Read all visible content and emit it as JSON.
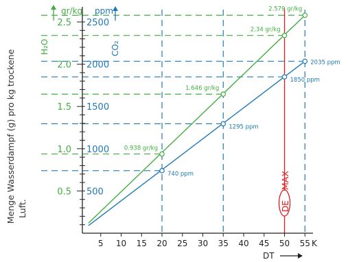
{
  "chart_data": {
    "type": "line",
    "ylabel_rotated": "Menge Wasserdampf (g) pro kg trockene Luft.",
    "ylabel_line1": "Menge Wasserdampf (g) pro kg trockene",
    "ylabel_line2": "Luft.",
    "h2o_axis": {
      "unit": "gr/kg",
      "label": "H₂O",
      "ticks": [
        "0.5",
        "1.0",
        "1.5",
        "2.0",
        "2.5"
      ],
      "tick_values": [
        0.5,
        1.0,
        1.5,
        2.0,
        2.5
      ],
      "ylim": [
        0.0,
        2.6
      ]
    },
    "co2_axis": {
      "unit": "ppm",
      "label": "CO₂",
      "ticks": [
        "500",
        "1000",
        "1500",
        "2000",
        "2500"
      ],
      "tick_values": [
        500,
        1000,
        1500,
        2000,
        2500
      ],
      "ylim": [
        0,
        2600
      ]
    },
    "x_axis": {
      "ticks": [
        "5",
        "10",
        "15",
        "20",
        "25",
        "30",
        "35",
        "40",
        "45",
        "50",
        "55"
      ],
      "tick_values": [
        5,
        10,
        15,
        20,
        25,
        30,
        35,
        40,
        45,
        50,
        55
      ],
      "unit": "K",
      "label": "DT",
      "xlim": [
        0,
        57
      ]
    },
    "series": [
      {
        "color": "#3fae3f",
        "axis": "h2o",
        "line": [
          [
            2,
            0.12
          ],
          [
            55,
            2.579
          ]
        ],
        "points": [
          {
            "x": 20,
            "y": 0.938,
            "label": "0.938 gr/kg"
          },
          {
            "x": 35,
            "y": 1.646,
            "label": "1.646 gr/kg"
          },
          {
            "x": 50,
            "y": 2.34,
            "label": "2,34 gr/kg"
          },
          {
            "x": 55,
            "y": 2.579,
            "label": "2.579 gr/kg"
          }
        ]
      },
      {
        "color": "#1f78b4",
        "axis": "co2",
        "line": [
          [
            2,
            90
          ],
          [
            55,
            2035
          ]
        ],
        "points": [
          {
            "x": 20,
            "y": 740,
            "label": "740 ppm"
          },
          {
            "x": 35,
            "y": 1295,
            "label": "1295 ppm"
          },
          {
            "x": 50,
            "y": 1850,
            "label": "1850 ppm"
          },
          {
            "x": 55,
            "y": 2035,
            "label": "2035 ppm"
          }
        ]
      }
    ],
    "max_marker": {
      "x": 50,
      "label": "MAX",
      "badge": "DE",
      "color": "#e31a1c"
    },
    "vertical_guides": [
      20,
      35,
      50,
      55
    ]
  }
}
